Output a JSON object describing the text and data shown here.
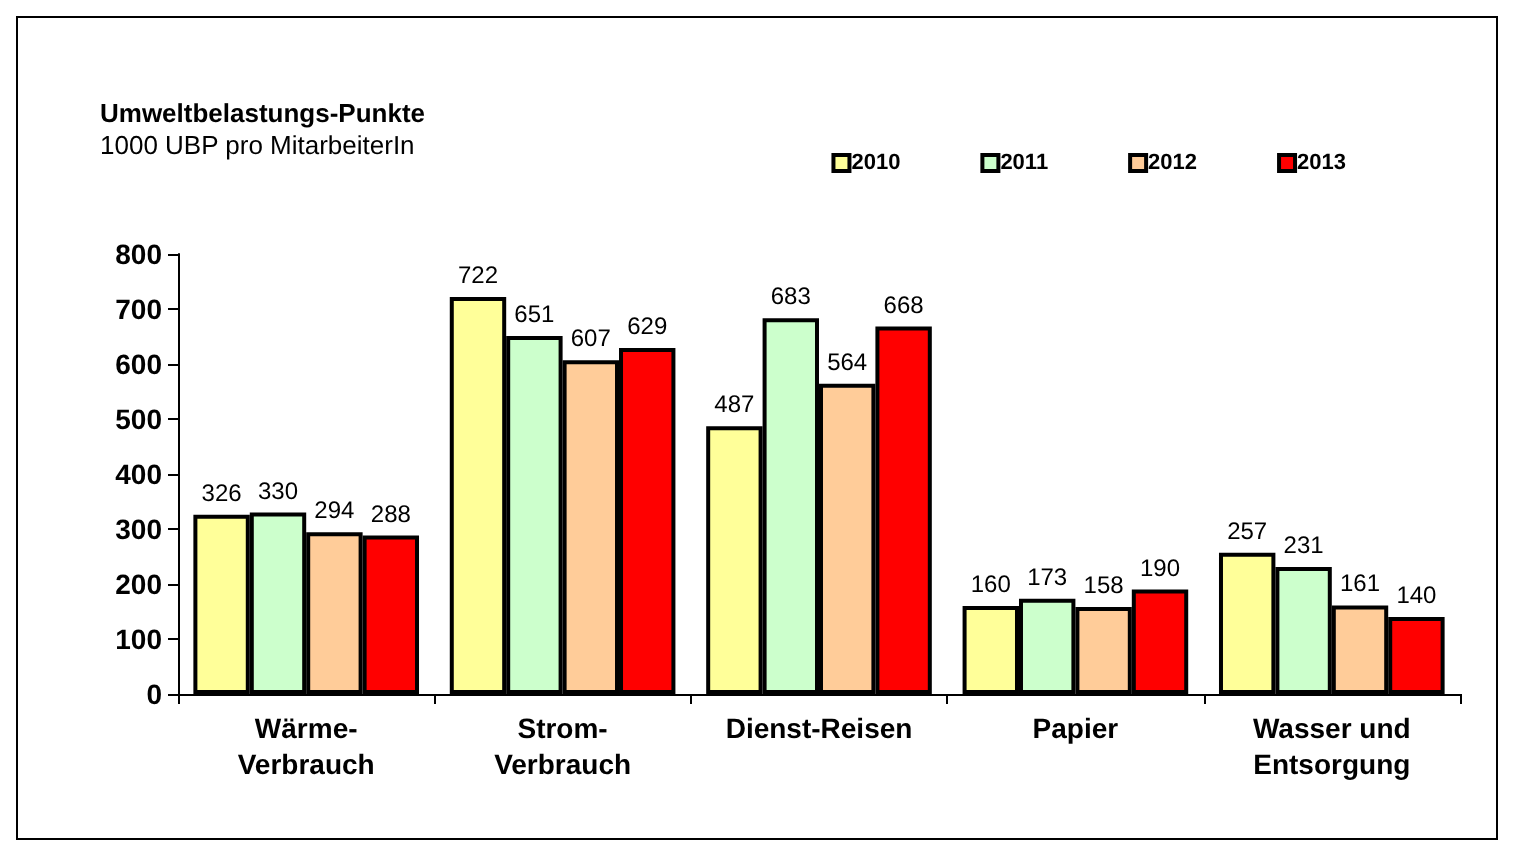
{
  "chart_data": {
    "type": "bar",
    "title": "Umweltbelastungs-Punkte",
    "subtitle": "1000 UBP pro MitarbeiterIn",
    "categories": [
      "Wärme-\nVerbrauch",
      "Strom-\nVerbrauch",
      "Dienst-Reisen",
      "Papier",
      "Wasser und\nEntsorgung"
    ],
    "series": [
      {
        "name": "2010",
        "color": "#ffff99",
        "values": [
          326,
          722,
          487,
          160,
          257
        ]
      },
      {
        "name": "2011",
        "color": "#ccffcc",
        "values": [
          330,
          651,
          683,
          173,
          231
        ]
      },
      {
        "name": "2012",
        "color": "#ffcc99",
        "values": [
          294,
          607,
          564,
          158,
          161
        ]
      },
      {
        "name": "2013",
        "color": "#ff0000",
        "values": [
          288,
          629,
          668,
          190,
          140
        ]
      }
    ],
    "ylim": [
      0,
      800
    ],
    "yticks": [
      0,
      100,
      200,
      300,
      400,
      500,
      600,
      700,
      800
    ],
    "grid": false,
    "legend": "top right",
    "data_labels": true
  }
}
